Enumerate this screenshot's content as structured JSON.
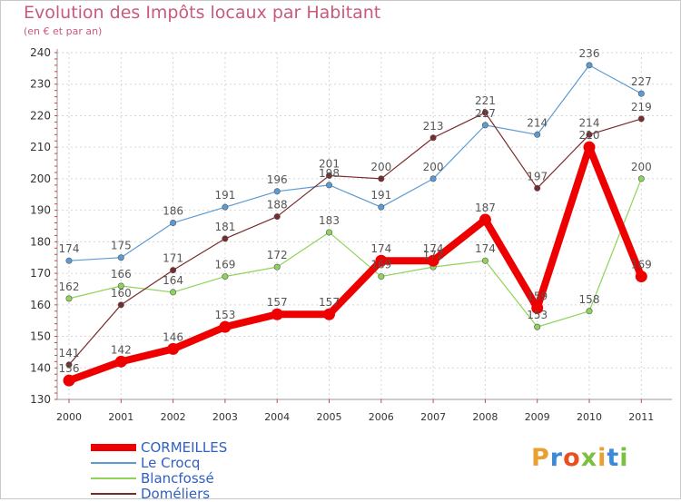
{
  "title": "Evolution des Impôts locaux par Habitant",
  "subtitle": "(en € et par an)",
  "logo": {
    "text": "Proxiti",
    "colors": [
      "#e8a030",
      "#3a8ad8",
      "#e85020",
      "#7cc040",
      "#e8a030",
      "#3a8ad8",
      "#7cc040"
    ]
  },
  "chart_data": {
    "type": "line",
    "x": [
      "2000",
      "2001",
      "2002",
      "2003",
      "2004",
      "2005",
      "2006",
      "2007",
      "2008",
      "2009",
      "2010",
      "2011"
    ],
    "ylim": [
      130,
      240
    ],
    "yticks": [
      "130",
      "140",
      "150",
      "160",
      "170",
      "180",
      "190",
      "200",
      "210",
      "220",
      "230",
      "240"
    ],
    "grid": true,
    "legend_position": "bottom-left",
    "series": [
      {
        "name": "Le Crocq",
        "color": "#5b9bd5",
        "values": [
          174,
          175,
          186,
          191,
          196,
          198,
          191,
          200,
          217,
          214,
          236,
          227
        ],
        "labels": [
          "174",
          "175",
          "186",
          "191",
          "196",
          "198",
          "191",
          "200",
          "217",
          "214",
          "236",
          "227"
        ]
      },
      {
        "name": "Blancfossé",
        "color": "#8fd35a",
        "values": [
          162,
          166,
          164,
          169,
          172,
          183,
          169,
          172,
          174,
          153,
          158,
          200
        ],
        "labels": [
          "162",
          "166",
          "164",
          "169",
          "172",
          "183",
          "169",
          "172",
          "174",
          "153",
          "158",
          "200"
        ]
      },
      {
        "name": "Doméliers",
        "color": "#7a2a2a",
        "values": [
          141,
          160,
          171,
          181,
          188,
          201,
          200,
          213,
          221,
          197,
          214,
          219
        ],
        "labels": [
          "141",
          "160",
          "171",
          "181",
          "188",
          "201",
          "200",
          "213",
          "221",
          "197",
          "214",
          "219"
        ]
      },
      {
        "name": "CORMEILLES",
        "color": "#ee0000",
        "values": [
          136,
          142,
          146,
          153,
          157,
          157,
          174,
          174,
          187,
          159,
          210,
          169
        ],
        "labels": [
          "136",
          "142",
          "146",
          "153",
          "157",
          "157",
          "174",
          "174",
          "187",
          "159",
          "210",
          "169"
        ]
      }
    ],
    "legend": [
      "CORMEILLES",
      "Le Crocq",
      "Blancfossé",
      "Doméliers"
    ]
  }
}
